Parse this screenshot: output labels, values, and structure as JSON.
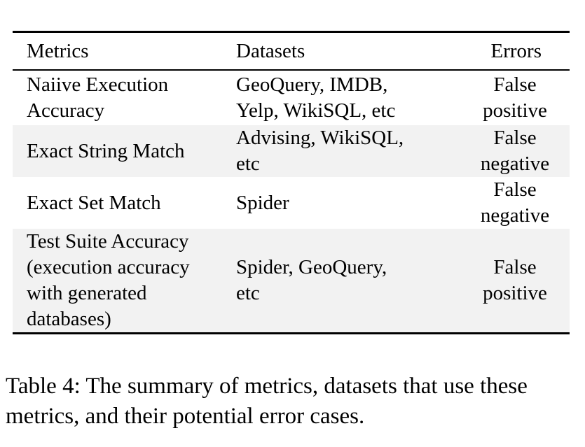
{
  "table": {
    "headers": {
      "metrics": "Metrics",
      "datasets": "Datasets",
      "errors": "Errors"
    },
    "rows": [
      {
        "metric": [
          "Naiive Execution",
          "Accuracy"
        ],
        "datasets": [
          "GeoQuery, IMDB,",
          "Yelp, WikiSQL, etc"
        ],
        "errors": [
          "False",
          "positive"
        ]
      },
      {
        "metric": [
          "Exact String Match"
        ],
        "datasets": [
          "Advising, WikiSQL,",
          "etc"
        ],
        "errors": [
          "False",
          "negative"
        ]
      },
      {
        "metric": [
          "Exact Set Match"
        ],
        "datasets": [
          "Spider"
        ],
        "errors": [
          "False",
          "negative"
        ]
      },
      {
        "metric": [
          "Test Suite Accuracy",
          "(execution accuracy",
          "with generated",
          "databases)"
        ],
        "datasets": [
          "Spider, GeoQuery,",
          "etc"
        ],
        "errors": [
          "False",
          "positive"
        ]
      }
    ]
  },
  "caption": {
    "line1": "Table 4: The summary of metrics, datasets that use these",
    "line2": "metrics, and their potential error cases."
  }
}
